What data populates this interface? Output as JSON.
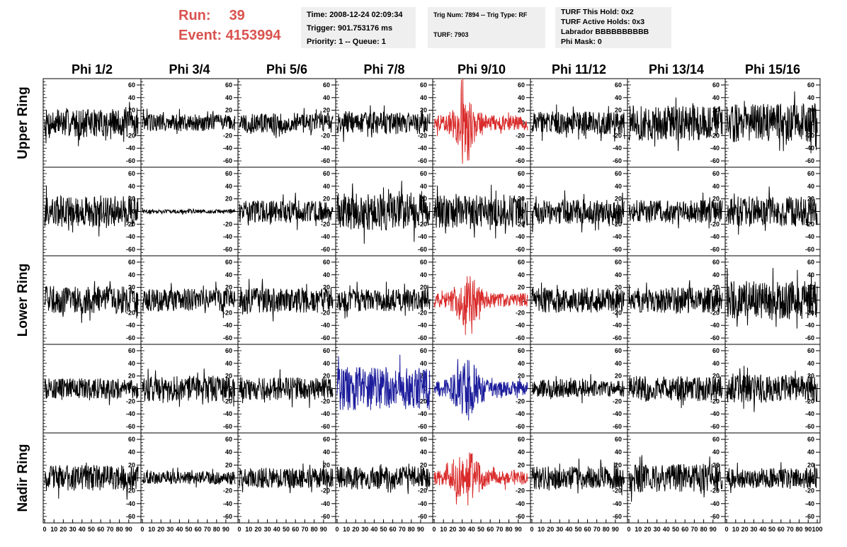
{
  "header": {
    "run_label": "Run:",
    "run_value": "39",
    "event_label": "Event:",
    "event_value": "4153994"
  },
  "info_time": {
    "time": "Time: 2008-12-24 02:09:34",
    "trigger": "Trigger: 901.753176 ms",
    "priority": "Priority: 1 -- Queue: 1"
  },
  "info_trig": {
    "trig": "Trig Num: 7894 -- Trig Type: RF",
    "turf": "TURF: 7903"
  },
  "info_turf": {
    "this_hold": "TURF This Hold: 0x2",
    "active_holds": "TURF Active Holds: 0x3",
    "labrador": "Labrador BBBBBBBBBB",
    "phi_mask": "Phi Mask: 0"
  },
  "colors": {
    "normal": "#000000",
    "triggered": "#d92b2b",
    "masked": "#1c1c9c",
    "header_text": "#d9534f",
    "info_bg": "#efefef"
  },
  "chart_data": {
    "type": "line",
    "columns": [
      "Phi 1/2",
      "Phi 3/4",
      "Phi 5/6",
      "Phi 7/8",
      "Phi 9/10",
      "Phi 11/12",
      "Phi 13/14",
      "Phi 15/16"
    ],
    "rows": [
      "Upper Ring",
      "",
      "Lower Ring",
      "",
      "Nadir Ring"
    ],
    "x_ticks": [
      "0",
      "10",
      "20",
      "30",
      "40",
      "50",
      "60",
      "70",
      "80",
      "90",
      "100"
    ],
    "x_tick_labels_bottom": "0 10 20 30 40 50 60 70 80 90 100",
    "y_ticks": [
      "60",
      "40",
      "20",
      "0",
      "-20",
      "-40",
      "-60"
    ],
    "xlim": [
      0,
      100
    ],
    "ylim": [
      -70,
      70
    ],
    "grid": false,
    "traces": [
      [
        {
          "color": "normal",
          "amplitude": 22,
          "burst": false
        },
        {
          "color": "normal",
          "amplitude": 14,
          "burst": false
        },
        {
          "color": "normal",
          "amplitude": 16,
          "burst": false
        },
        {
          "color": "normal",
          "amplitude": 18,
          "burst": false
        },
        {
          "color": "triggered",
          "amplitude": 22,
          "burst": true
        },
        {
          "color": "normal",
          "amplitude": 18,
          "burst": false
        },
        {
          "color": "normal",
          "amplitude": 28,
          "burst": false
        },
        {
          "color": "normal",
          "amplitude": 30,
          "burst": false
        }
      ],
      [
        {
          "color": "normal",
          "amplitude": 25,
          "burst": false
        },
        {
          "color": "normal",
          "amplitude": 3,
          "burst": false
        },
        {
          "color": "normal",
          "amplitude": 18,
          "burst": false
        },
        {
          "color": "normal",
          "amplitude": 30,
          "burst": false
        },
        {
          "color": "normal",
          "amplitude": 26,
          "burst": false
        },
        {
          "color": "normal",
          "amplitude": 20,
          "burst": false
        },
        {
          "color": "normal",
          "amplitude": 18,
          "burst": false
        },
        {
          "color": "normal",
          "amplitude": 24,
          "burst": false
        }
      ],
      [
        {
          "color": "normal",
          "amplitude": 22,
          "burst": false
        },
        {
          "color": "normal",
          "amplitude": 18,
          "burst": false
        },
        {
          "color": "normal",
          "amplitude": 20,
          "burst": false
        },
        {
          "color": "normal",
          "amplitude": 18,
          "burst": false
        },
        {
          "color": "triggered",
          "amplitude": 20,
          "burst": true
        },
        {
          "color": "normal",
          "amplitude": 20,
          "burst": false
        },
        {
          "color": "normal",
          "amplitude": 20,
          "burst": false
        },
        {
          "color": "normal",
          "amplitude": 30,
          "burst": false
        }
      ],
      [
        {
          "color": "normal",
          "amplitude": 16,
          "burst": false
        },
        {
          "color": "normal",
          "amplitude": 20,
          "burst": false
        },
        {
          "color": "normal",
          "amplitude": 18,
          "burst": false
        },
        {
          "color": "masked",
          "amplitude": 34,
          "burst": false
        },
        {
          "color": "masked",
          "amplitude": 22,
          "burst": true
        },
        {
          "color": "normal",
          "amplitude": 14,
          "burst": false
        },
        {
          "color": "normal",
          "amplitude": 20,
          "burst": false
        },
        {
          "color": "normal",
          "amplitude": 22,
          "burst": false
        }
      ],
      [
        {
          "color": "normal",
          "amplitude": 20,
          "burst": false
        },
        {
          "color": "normal",
          "amplitude": 10,
          "burst": false
        },
        {
          "color": "normal",
          "amplitude": 16,
          "burst": false
        },
        {
          "color": "normal",
          "amplitude": 18,
          "burst": false
        },
        {
          "color": "triggered",
          "amplitude": 20,
          "burst": true
        },
        {
          "color": "normal",
          "amplitude": 18,
          "burst": false
        },
        {
          "color": "normal",
          "amplitude": 22,
          "burst": false
        },
        {
          "color": "normal",
          "amplitude": 16,
          "burst": false
        }
      ]
    ]
  }
}
